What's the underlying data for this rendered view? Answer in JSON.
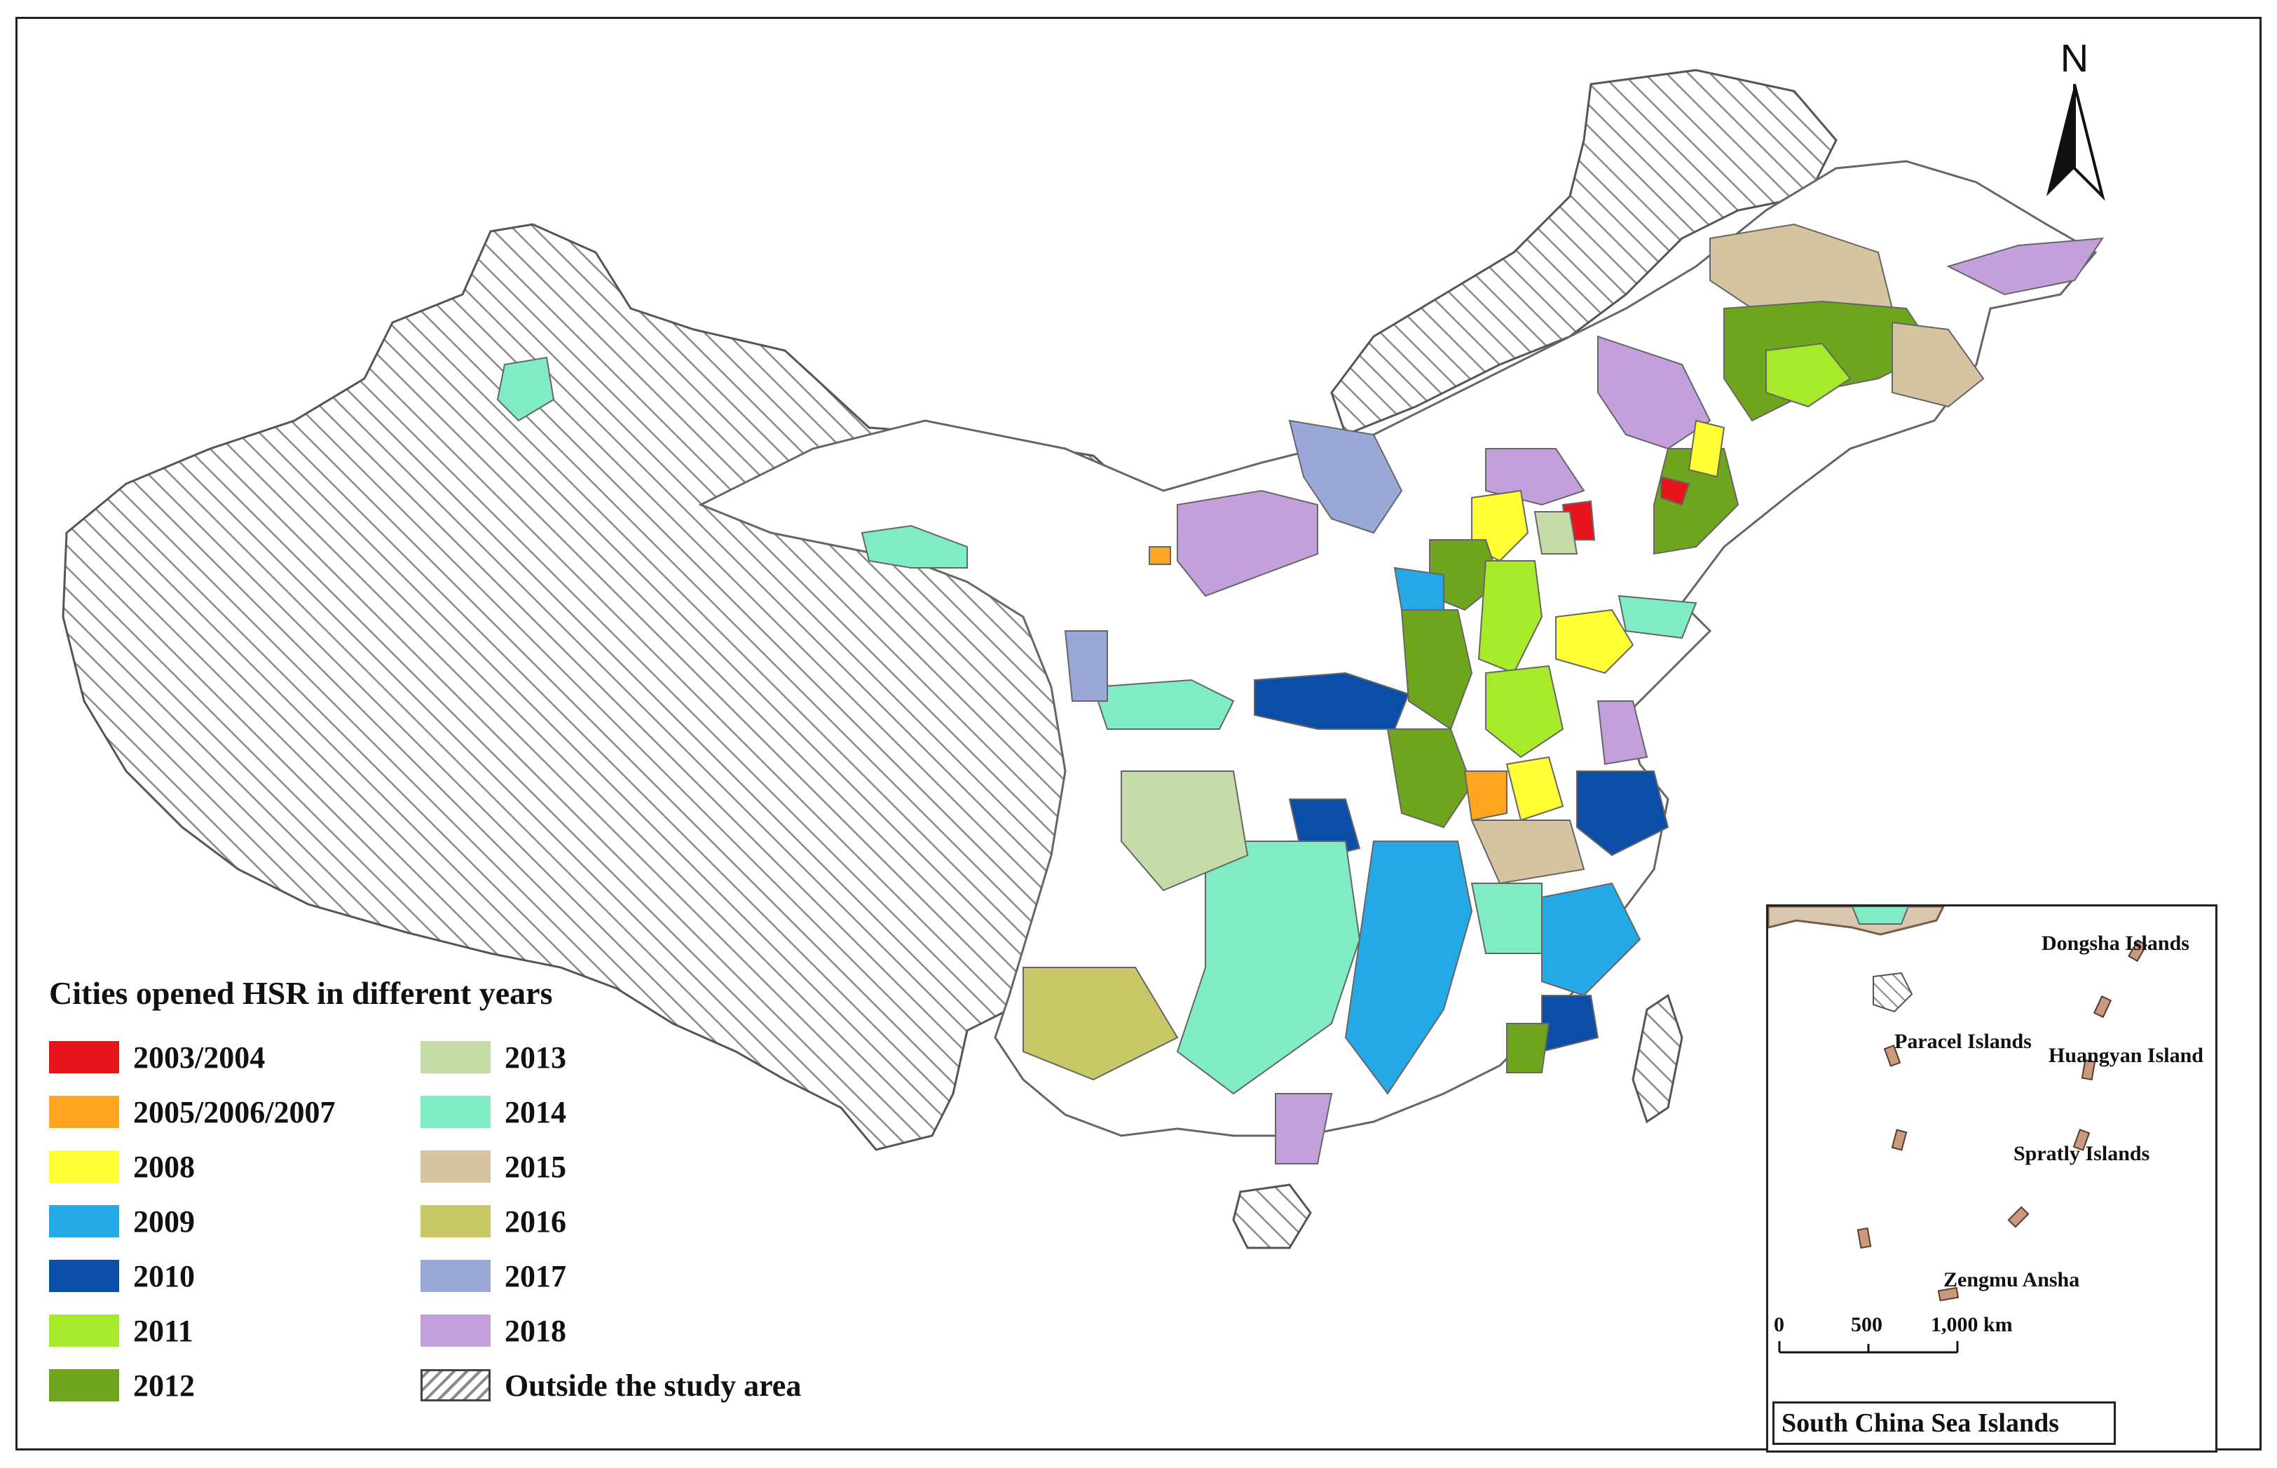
{
  "map": {
    "north_label": "N",
    "legend_title": "Cities opened HSR in different years",
    "legend": [
      {
        "label": "2003/2004",
        "color": "#e8141b",
        "pattern": false
      },
      {
        "label": "2013",
        "color": "#c6dca8",
        "pattern": false
      },
      {
        "label": "2005/2006/2007",
        "color": "#ffa51f",
        "pattern": false
      },
      {
        "label": "2014",
        "color": "#7fecc4",
        "pattern": false
      },
      {
        "label": "2008",
        "color": "#ffff33",
        "pattern": false
      },
      {
        "label": "2015",
        "color": "#d6c3a0",
        "pattern": false
      },
      {
        "label": "2009",
        "color": "#25a9e6",
        "pattern": false
      },
      {
        "label": "2016",
        "color": "#c8c866",
        "pattern": false
      },
      {
        "label": "2010",
        "color": "#0a4ea8",
        "pattern": false
      },
      {
        "label": "2017",
        "color": "#9aa8d8",
        "pattern": false
      },
      {
        "label": "2011",
        "color": "#a6ea2a",
        "pattern": false
      },
      {
        "label": "2018",
        "color": "#c39fdc",
        "pattern": false
      },
      {
        "label": "2012",
        "color": "#6fa51c",
        "pattern": false
      },
      {
        "label": "Outside the study area",
        "color": "#ffffff",
        "pattern": true
      }
    ],
    "inset": {
      "title": "South China Sea Islands",
      "labels": {
        "dongsha": "Dongsha Islands",
        "paracel": "Paracel Islands",
        "huangyan": "Huangyan Island",
        "spratly": "Spratly Islands",
        "zengmu": "Zengmu Ansha"
      },
      "scale": {
        "zero": "0",
        "mid": "500",
        "max": "1,000 km"
      }
    }
  }
}
